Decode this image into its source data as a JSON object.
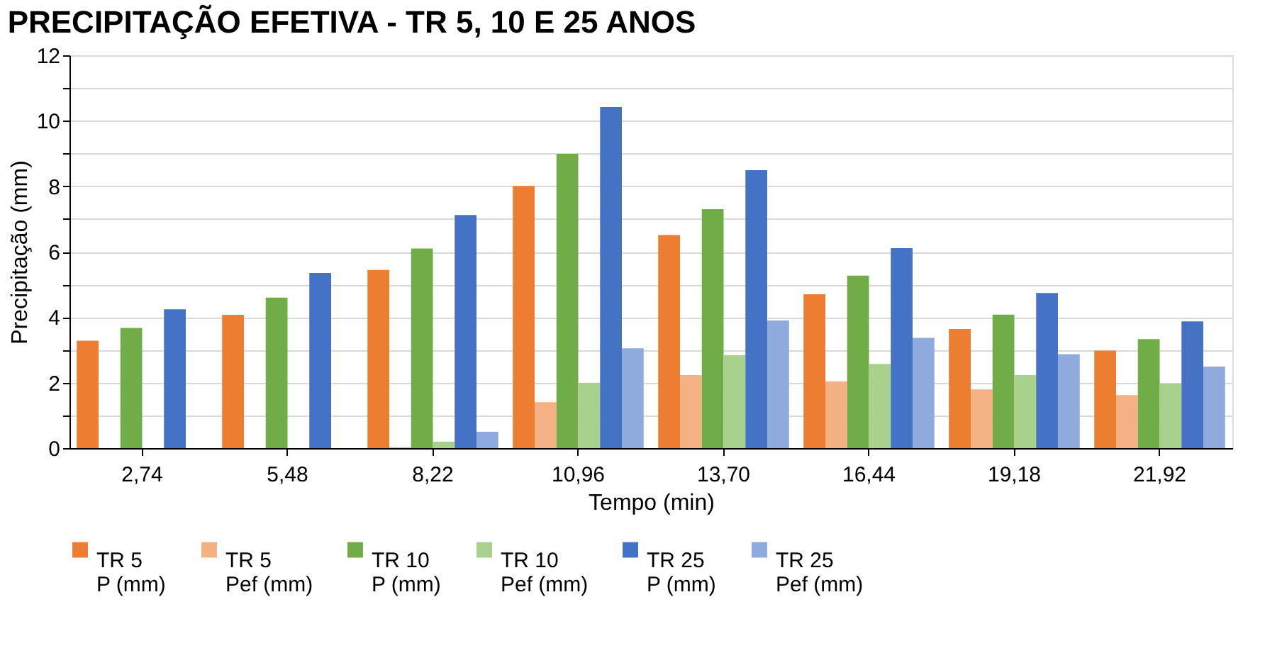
{
  "chart_data": {
    "type": "bar",
    "title": "PRECIPITAÇÃO EFETIVA - TR 5, 10 E 25 ANOS",
    "xlabel": "Tempo (min)",
    "ylabel": "Precipitação  (mm)",
    "categories": [
      "2,74",
      "5,48",
      "8,22",
      "10,96",
      "13,70",
      "16,44",
      "19,18",
      "21,92"
    ],
    "series": [
      {
        "name": "TR 5\nP (mm)",
        "color": "#ed7d31",
        "values": [
          3.28,
          4.07,
          5.44,
          8.01,
          6.51,
          4.7,
          3.64,
          2.98
        ]
      },
      {
        "name": "TR 5\nPef (mm)",
        "color": "#f4b183",
        "values": [
          0,
          0,
          0.03,
          1.4,
          2.23,
          2.04,
          1.79,
          1.62
        ]
      },
      {
        "name": "TR 10\nP (mm)",
        "color": "#70ad47",
        "values": [
          3.67,
          4.6,
          6.1,
          8.99,
          7.3,
          5.27,
          4.08,
          3.33
        ]
      },
      {
        "name": "TR 10\nPef (mm)",
        "color": "#a9d18e",
        "values": [
          0,
          0,
          0.2,
          2.0,
          2.84,
          2.57,
          2.23,
          1.97
        ]
      },
      {
        "name": "TR 25\nP (mm)",
        "color": "#4472c4",
        "values": [
          4.24,
          5.35,
          7.12,
          10.42,
          8.49,
          6.11,
          4.74,
          3.87
        ]
      },
      {
        "name": "TR 25\nPef (mm)",
        "color": "#8faadc",
        "values": [
          0,
          0,
          0.5,
          3.05,
          3.9,
          3.37,
          2.87,
          2.49
        ]
      }
    ],
    "ylim": [
      0,
      12
    ],
    "yticks": [
      0,
      {
        "value": 1,
        "label": null
      },
      2,
      {
        "value": 3,
        "label": null
      },
      4,
      {
        "value": 5,
        "label": null
      },
      6,
      {
        "value": 7,
        "label": null
      },
      8,
      {
        "value": 9,
        "label": null
      },
      10,
      {
        "value": 11,
        "label": null
      },
      12
    ],
    "grid": "y",
    "legend": "bottom"
  }
}
